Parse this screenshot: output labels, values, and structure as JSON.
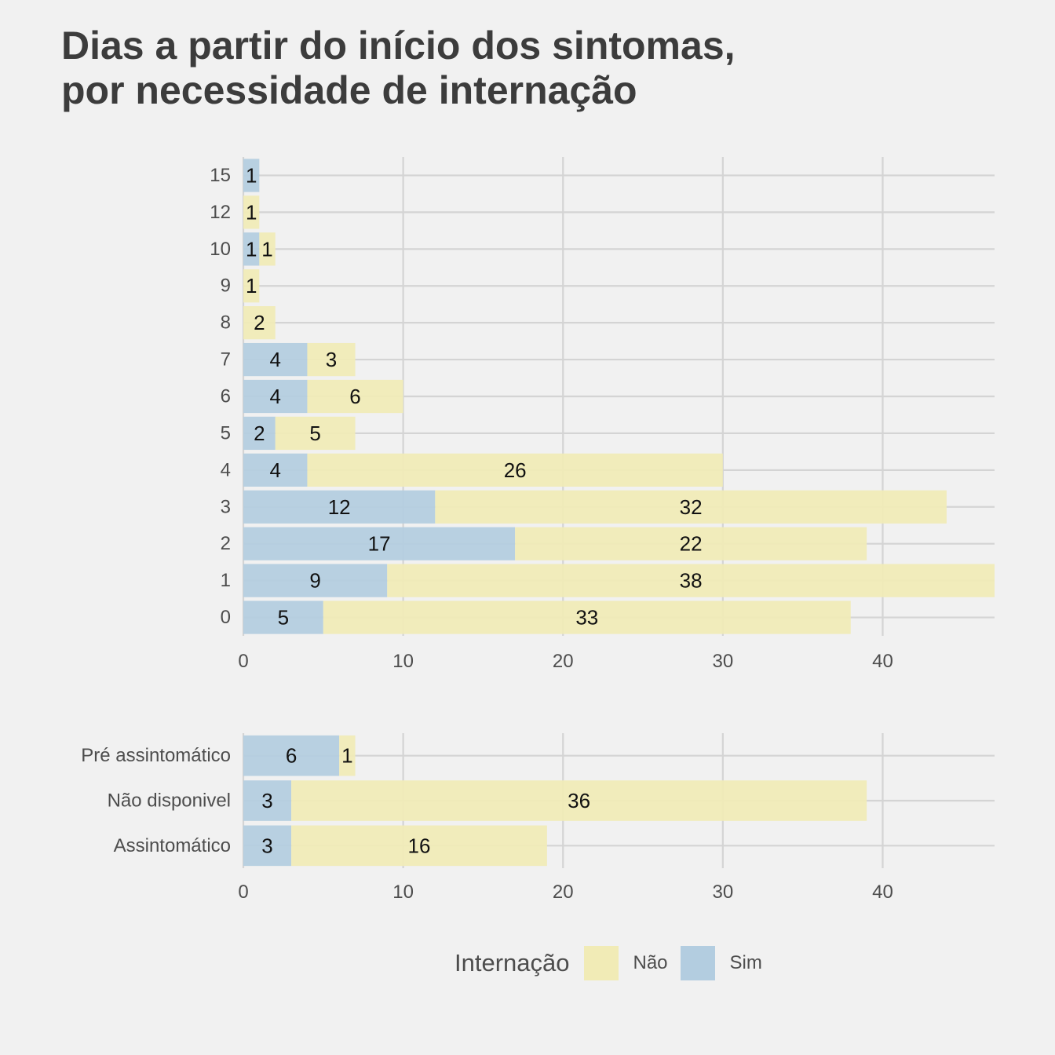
{
  "title_lines": [
    "Dias a partir do início dos sintomas,",
    "por necessidade de internação"
  ],
  "colors": {
    "background": "#f1f1f1",
    "grid": "#d4d4d4",
    "sim": "#b3cde0",
    "nao": "#f1ebb6"
  },
  "legend": {
    "title": "Internação",
    "items": [
      {
        "label": "Não",
        "color": "#f1ebb6"
      },
      {
        "label": "Sim",
        "color": "#b3cde0"
      }
    ]
  },
  "chart_data": [
    {
      "type": "bar",
      "orientation": "horizontal",
      "stacked": true,
      "categories": [
        "0",
        "1",
        "2",
        "3",
        "4",
        "5",
        "6",
        "7",
        "8",
        "9",
        "10",
        "12",
        "15"
      ],
      "series": [
        {
          "name": "Sim",
          "values": [
            5,
            9,
            17,
            12,
            4,
            2,
            4,
            4,
            0,
            0,
            1,
            0,
            1
          ]
        },
        {
          "name": "Não",
          "values": [
            33,
            38,
            22,
            32,
            26,
            5,
            6,
            3,
            2,
            1,
            1,
            1,
            0
          ]
        }
      ],
      "x_ticks": [
        0,
        10,
        20,
        30,
        40
      ],
      "xlim": [
        0,
        47
      ],
      "grid": true
    },
    {
      "type": "bar",
      "orientation": "horizontal",
      "stacked": true,
      "categories": [
        "Assintomático",
        "Não disponivel",
        "Pré assintomático"
      ],
      "series": [
        {
          "name": "Sim",
          "values": [
            3,
            3,
            6
          ]
        },
        {
          "name": "Não",
          "values": [
            16,
            36,
            1
          ]
        }
      ],
      "x_ticks": [
        0,
        10,
        20,
        30,
        40
      ],
      "xlim": [
        0,
        47
      ],
      "grid": true,
      "legend_position": "bottom"
    }
  ]
}
